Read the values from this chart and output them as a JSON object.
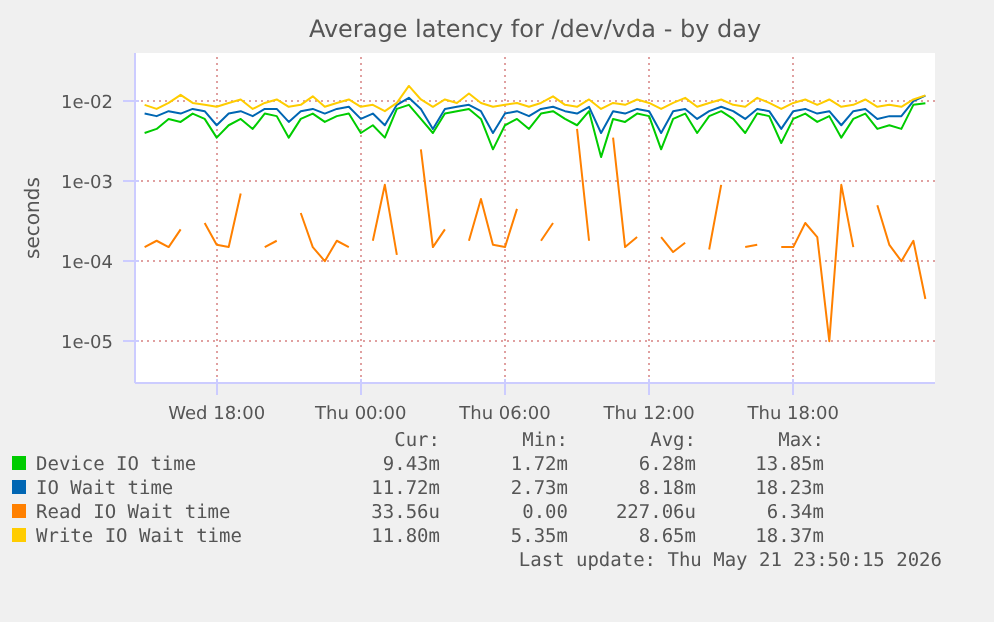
{
  "chart_data": {
    "type": "line",
    "title": "Average latency for /dev/vda - by day",
    "ylabel": "seconds",
    "log": "y",
    "grid": true,
    "legend": "bottom",
    "x": [
      "2026-05-20T15:00",
      "2026-05-20T15:30",
      "2026-05-20T16:00",
      "2026-05-20T16:30",
      "2026-05-20T17:00",
      "2026-05-20T17:30",
      "2026-05-20T18:00",
      "2026-05-20T18:30",
      "2026-05-20T19:00",
      "2026-05-20T19:30",
      "2026-05-20T20:00",
      "2026-05-20T20:30",
      "2026-05-20T21:00",
      "2026-05-20T21:30",
      "2026-05-20T22:00",
      "2026-05-20T22:30",
      "2026-05-20T23:00",
      "2026-05-20T23:30",
      "2026-05-21T00:00",
      "2026-05-21T00:30",
      "2026-05-21T01:00",
      "2026-05-21T01:30",
      "2026-05-21T02:00",
      "2026-05-21T02:30",
      "2026-05-21T03:00",
      "2026-05-21T03:30",
      "2026-05-21T04:00",
      "2026-05-21T04:30",
      "2026-05-21T05:00",
      "2026-05-21T05:30",
      "2026-05-21T06:00",
      "2026-05-21T06:30",
      "2026-05-21T07:00",
      "2026-05-21T07:30",
      "2026-05-21T08:00",
      "2026-05-21T08:30",
      "2026-05-21T09:00",
      "2026-05-21T09:30",
      "2026-05-21T10:00",
      "2026-05-21T10:30",
      "2026-05-21T11:00",
      "2026-05-21T11:30",
      "2026-05-21T12:00",
      "2026-05-21T12:30",
      "2026-05-21T13:00",
      "2026-05-21T13:30",
      "2026-05-21T14:00",
      "2026-05-21T14:30",
      "2026-05-21T15:00",
      "2026-05-21T15:30",
      "2026-05-21T16:00",
      "2026-05-21T16:30",
      "2026-05-21T17:00",
      "2026-05-21T17:30",
      "2026-05-21T18:00",
      "2026-05-21T18:30",
      "2026-05-21T19:00",
      "2026-05-21T19:30",
      "2026-05-21T20:00",
      "2026-05-21T20:30",
      "2026-05-21T21:00",
      "2026-05-21T21:30",
      "2026-05-21T22:00",
      "2026-05-21T22:30",
      "2026-05-21T23:00",
      "2026-05-21T23:30"
    ],
    "xlim": [
      "2026-05-20T14:36",
      "2026-05-21T23:54"
    ],
    "xticks": [
      {
        "value": "2026-05-20T18:00",
        "label": "Wed 18:00"
      },
      {
        "value": "2026-05-21T00:00",
        "label": "Thu 00:00"
      },
      {
        "value": "2026-05-21T06:00",
        "label": "Thu 06:00"
      },
      {
        "value": "2026-05-21T12:00",
        "label": "Thu 12:00"
      },
      {
        "value": "2026-05-21T18:00",
        "label": "Thu 18:00"
      }
    ],
    "ylim": [
      3e-06,
      0.04
    ],
    "yticks": [
      {
        "value": 1e-05,
        "label": "1e-05"
      },
      {
        "value": 0.0001,
        "label": "1e-04"
      },
      {
        "value": 0.001,
        "label": "1e-03"
      },
      {
        "value": 0.01,
        "label": "1e-02"
      }
    ],
    "series": [
      {
        "name": "Device IO time",
        "color": "#00cc00",
        "values": [
          0.004,
          0.0045,
          0.006,
          0.0055,
          0.007,
          0.006,
          0.0035,
          0.005,
          0.006,
          0.0045,
          0.007,
          0.0065,
          0.0035,
          0.006,
          0.007,
          0.0055,
          0.0065,
          0.007,
          0.004,
          0.005,
          0.0035,
          0.008,
          0.009,
          0.006,
          0.004,
          0.007,
          0.0075,
          0.008,
          0.006,
          0.0025,
          0.005,
          0.006,
          0.0045,
          0.007,
          0.0075,
          0.006,
          0.005,
          0.0075,
          0.002,
          0.006,
          0.0055,
          0.007,
          0.0065,
          0.0025,
          0.006,
          0.007,
          0.004,
          0.0065,
          0.0075,
          0.006,
          0.004,
          0.007,
          0.0065,
          0.003,
          0.006,
          0.007,
          0.0055,
          0.0065,
          0.0035,
          0.006,
          0.007,
          0.0045,
          0.005,
          0.0045,
          0.009,
          0.0094
        ]
      },
      {
        "name": "IO Wait time",
        "color": "#0066b3",
        "values": [
          0.007,
          0.0065,
          0.0075,
          0.007,
          0.008,
          0.0075,
          0.005,
          0.007,
          0.0075,
          0.0065,
          0.008,
          0.008,
          0.0055,
          0.0075,
          0.008,
          0.007,
          0.008,
          0.0085,
          0.006,
          0.007,
          0.005,
          0.009,
          0.011,
          0.008,
          0.0045,
          0.008,
          0.0085,
          0.009,
          0.0075,
          0.004,
          0.007,
          0.0075,
          0.0065,
          0.008,
          0.0085,
          0.0075,
          0.007,
          0.0085,
          0.004,
          0.0075,
          0.007,
          0.008,
          0.0075,
          0.004,
          0.0075,
          0.008,
          0.006,
          0.0075,
          0.0085,
          0.0075,
          0.006,
          0.008,
          0.0075,
          0.0045,
          0.0075,
          0.008,
          0.007,
          0.0075,
          0.005,
          0.0075,
          0.008,
          0.006,
          0.0065,
          0.0065,
          0.01,
          0.0117
        ]
      },
      {
        "name": "Read IO Wait time",
        "color": "#ff8000",
        "values": [
          0.00015,
          0.00018,
          0.00015,
          0.00025,
          null,
          0.0003,
          0.00016,
          0.00015,
          0.0007,
          null,
          0.00015,
          0.00018,
          null,
          0.0004,
          0.00015,
          0.0001,
          0.00018,
          0.00015,
          null,
          0.00018,
          0.0009,
          0.00012,
          null,
          0.0025,
          0.00015,
          0.00025,
          null,
          0.00018,
          0.0006,
          0.00016,
          0.00015,
          0.00045,
          null,
          0.00018,
          0.0003,
          null,
          0.0045,
          0.00018,
          null,
          0.0035,
          0.00015,
          0.0002,
          null,
          0.0002,
          0.00013,
          0.00017,
          null,
          0.00014,
          0.0009,
          null,
          0.00015,
          0.00016,
          null,
          0.00015,
          0.00015,
          0.0003,
          0.0002,
          1e-05,
          0.0009,
          0.00015,
          null,
          0.0005,
          0.00016,
          0.0001,
          0.00018,
          3.36e-05
        ]
      },
      {
        "name": "Write IO Wait time",
        "color": "#ffcc00",
        "values": [
          0.009,
          0.008,
          0.0095,
          0.012,
          0.0095,
          0.009,
          0.0085,
          0.0095,
          0.0105,
          0.008,
          0.0095,
          0.0105,
          0.0085,
          0.009,
          0.0115,
          0.0085,
          0.0095,
          0.0105,
          0.0085,
          0.009,
          0.0075,
          0.0095,
          0.0155,
          0.0105,
          0.0085,
          0.0105,
          0.0095,
          0.0125,
          0.0095,
          0.0085,
          0.009,
          0.0095,
          0.0085,
          0.0095,
          0.0115,
          0.009,
          0.0085,
          0.0105,
          0.008,
          0.0095,
          0.009,
          0.0105,
          0.0095,
          0.008,
          0.0095,
          0.011,
          0.0085,
          0.0095,
          0.0105,
          0.009,
          0.0085,
          0.011,
          0.0095,
          0.008,
          0.0095,
          0.0105,
          0.009,
          0.0105,
          0.0085,
          0.009,
          0.0105,
          0.0085,
          0.009,
          0.0085,
          0.0105,
          0.0118
        ]
      }
    ],
    "annotations": [
      "Cur:",
      "Min:",
      "Avg:",
      "Max:",
      "9.43m",
      "1.72m",
      "6.28m",
      "13.85m",
      "11.72m",
      "2.73m",
      "8.18m",
      "18.23m",
      "33.56u",
      "0.00",
      "227.06u",
      "6.34m",
      "11.80m",
      "5.35m",
      "8.65m",
      "18.37m",
      "Last update: Thu May 21 23:50:15 2026"
    ]
  }
}
